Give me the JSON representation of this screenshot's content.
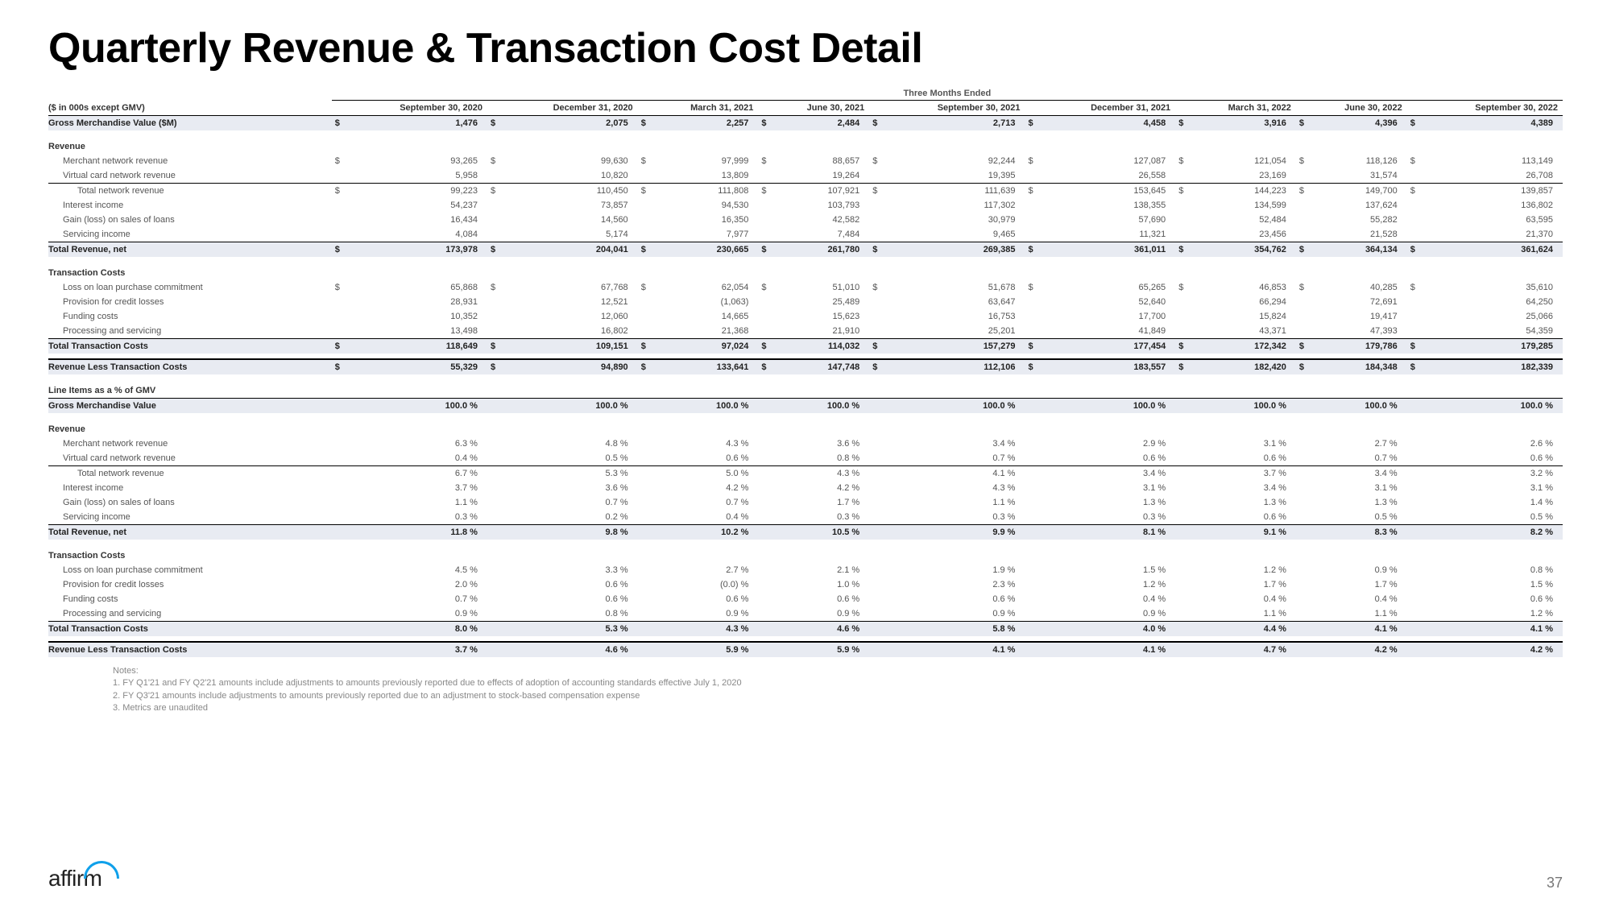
{
  "title": "Quarterly Revenue & Transaction Cost Detail",
  "period_header": "Three Months Ended",
  "units_label": "($ in 000s except GMV)",
  "columns": [
    "September 30, 2020",
    "December 31, 2020",
    "March 31, 2021",
    "June 30, 2021",
    "September 30, 2021",
    "December 31, 2021",
    "March 31, 2022",
    "June 30, 2022",
    "September 30, 2022"
  ],
  "page_number": "37",
  "logo_text": "affirm",
  "notes_title": "Notes:",
  "notes": [
    "1. FY Q1'21 and FY Q2'21 amounts include adjustments to amounts previously reported due to effects of adoption of accounting standards effective July 1, 2020",
    "2. FY Q3'21 amounts include adjustments to amounts previously reported due to an adjustment to stock-based compensation expense",
    "3. Metrics are unaudited"
  ],
  "rows": [
    {
      "label": "Gross Merchandise Value ($M)",
      "cls": "bold shaded top-line",
      "dollar": true,
      "vals": [
        "1,476",
        "2,075",
        "2,257",
        "2,484",
        "2,713",
        "4,458",
        "3,916",
        "4,396",
        "4,389"
      ]
    },
    {
      "label": "",
      "cls": "spacer",
      "vals": []
    },
    {
      "label": "Revenue",
      "cls": "section-head",
      "vals": []
    },
    {
      "label": "Merchant network revenue",
      "cls": "indent1",
      "dollar": true,
      "vals": [
        "93,265",
        "99,630",
        "97,999",
        "88,657",
        "92,244",
        "127,087",
        "121,054",
        "118,126",
        "113,149"
      ]
    },
    {
      "label": "Virtual card network revenue",
      "cls": "indent1 bot-line",
      "vals": [
        "5,958",
        "10,820",
        "13,809",
        "19,264",
        "19,395",
        "26,558",
        "23,169",
        "31,574",
        "26,708"
      ]
    },
    {
      "label": "Total network revenue",
      "cls": "indent2",
      "dollar": true,
      "vals": [
        "99,223",
        "110,450",
        "111,808",
        "107,921",
        "111,639",
        "153,645",
        "144,223",
        "149,700",
        "139,857"
      ]
    },
    {
      "label": "Interest income",
      "cls": "indent1",
      "vals": [
        "54,237",
        "73,857",
        "94,530",
        "103,793",
        "117,302",
        "138,355",
        "134,599",
        "137,624",
        "136,802"
      ]
    },
    {
      "label": "Gain (loss) on sales of loans",
      "cls": "indent1",
      "vals": [
        "16,434",
        "14,560",
        "16,350",
        "42,582",
        "30,979",
        "57,690",
        "52,484",
        "55,282",
        "63,595"
      ]
    },
    {
      "label": "Servicing income",
      "cls": "indent1 bot-line",
      "vals": [
        "4,084",
        "5,174",
        "7,977",
        "7,484",
        "9,465",
        "11,321",
        "23,456",
        "21,528",
        "21,370"
      ]
    },
    {
      "label": "Total Revenue, net",
      "cls": "bold shaded",
      "dollar": true,
      "vals": [
        "173,978",
        "204,041",
        "230,665",
        "261,780",
        "269,385",
        "361,011",
        "354,762",
        "364,134",
        "361,624"
      ]
    },
    {
      "label": "",
      "cls": "spacer",
      "vals": []
    },
    {
      "label": "Transaction Costs",
      "cls": "section-head",
      "vals": []
    },
    {
      "label": "Loss on loan purchase commitment",
      "cls": "indent1",
      "dollar": true,
      "vals": [
        "65,868",
        "67,768",
        "62,054",
        "51,010",
        "51,678",
        "65,265",
        "46,853",
        "40,285",
        "35,610"
      ]
    },
    {
      "label": "Provision for credit losses",
      "cls": "indent1",
      "vals": [
        "28,931",
        "12,521",
        "(1,063)",
        "25,489",
        "63,647",
        "52,640",
        "66,294",
        "72,691",
        "64,250"
      ]
    },
    {
      "label": "Funding costs",
      "cls": "indent1",
      "vals": [
        "10,352",
        "12,060",
        "14,665",
        "15,623",
        "16,753",
        "17,700",
        "15,824",
        "19,417",
        "25,066"
      ]
    },
    {
      "label": "Processing and servicing",
      "cls": "indent1 bot-line",
      "vals": [
        "13,498",
        "16,802",
        "21,368",
        "21,910",
        "25,201",
        "41,849",
        "43,371",
        "47,393",
        "54,359"
      ]
    },
    {
      "label": "Total Transaction Costs",
      "cls": "bold shaded",
      "dollar": true,
      "vals": [
        "118,649",
        "109,151",
        "97,024",
        "114,032",
        "157,279",
        "177,454",
        "172,342",
        "179,786",
        "179,285"
      ]
    },
    {
      "label": "",
      "cls": "spacer",
      "vals": []
    },
    {
      "label": "Revenue Less Transaction Costs",
      "cls": "bold shaded dbl-top",
      "dollar": true,
      "vals": [
        "55,329",
        "94,890",
        "133,641",
        "147,748",
        "112,106",
        "183,557",
        "182,420",
        "184,348",
        "182,339"
      ]
    },
    {
      "label": "",
      "cls": "spacer",
      "vals": []
    },
    {
      "label": "Line Items as a % of GMV",
      "cls": "section-head bot-line",
      "vals": []
    },
    {
      "label": "Gross Merchandise Value",
      "cls": "bold shaded",
      "pct": true,
      "vals": [
        "100.0",
        "100.0",
        "100.0",
        "100.0",
        "100.0",
        "100.0",
        "100.0",
        "100.0",
        "100.0"
      ]
    },
    {
      "label": "",
      "cls": "spacer",
      "vals": []
    },
    {
      "label": "Revenue",
      "cls": "section-head",
      "vals": []
    },
    {
      "label": "Merchant network revenue",
      "cls": "indent1",
      "pct": true,
      "vals": [
        "6.3",
        "4.8",
        "4.3",
        "3.6",
        "3.4",
        "2.9",
        "3.1",
        "2.7",
        "2.6"
      ]
    },
    {
      "label": "Virtual card network revenue",
      "cls": "indent1 bot-line",
      "pct": true,
      "vals": [
        "0.4",
        "0.5",
        "0.6",
        "0.8",
        "0.7",
        "0.6",
        "0.6",
        "0.7",
        "0.6"
      ]
    },
    {
      "label": "Total network revenue",
      "cls": "indent2",
      "pct": true,
      "vals": [
        "6.7",
        "5.3",
        "5.0",
        "4.3",
        "4.1",
        "3.4",
        "3.7",
        "3.4",
        "3.2"
      ]
    },
    {
      "label": "Interest income",
      "cls": "indent1",
      "pct": true,
      "vals": [
        "3.7",
        "3.6",
        "4.2",
        "4.2",
        "4.3",
        "3.1",
        "3.4",
        "3.1",
        "3.1"
      ]
    },
    {
      "label": "Gain (loss) on sales of loans",
      "cls": "indent1",
      "pct": true,
      "vals": [
        "1.1",
        "0.7",
        "0.7",
        "1.7",
        "1.1",
        "1.3",
        "1.3",
        "1.3",
        "1.4"
      ]
    },
    {
      "label": "Servicing income",
      "cls": "indent1 bot-line",
      "pct": true,
      "vals": [
        "0.3",
        "0.2",
        "0.4",
        "0.3",
        "0.3",
        "0.3",
        "0.6",
        "0.5",
        "0.5"
      ]
    },
    {
      "label": "Total Revenue, net",
      "cls": "bold shaded",
      "pct": true,
      "vals": [
        "11.8",
        "9.8",
        "10.2",
        "10.5",
        "9.9",
        "8.1",
        "9.1",
        "8.3",
        "8.2"
      ]
    },
    {
      "label": "",
      "cls": "spacer",
      "vals": []
    },
    {
      "label": "Transaction Costs",
      "cls": "section-head",
      "vals": []
    },
    {
      "label": "Loss on loan purchase commitment",
      "cls": "indent1",
      "pct": true,
      "vals": [
        "4.5",
        "3.3",
        "2.7",
        "2.1",
        "1.9",
        "1.5",
        "1.2",
        "0.9",
        "0.8"
      ]
    },
    {
      "label": "Provision for credit losses",
      "cls": "indent1",
      "pct": true,
      "vals": [
        "2.0",
        "0.6",
        "(0.0)",
        "1.0",
        "2.3",
        "1.2",
        "1.7",
        "1.7",
        "1.5"
      ]
    },
    {
      "label": "Funding costs",
      "cls": "indent1",
      "pct": true,
      "vals": [
        "0.7",
        "0.6",
        "0.6",
        "0.6",
        "0.6",
        "0.4",
        "0.4",
        "0.4",
        "0.6"
      ]
    },
    {
      "label": "Processing and servicing",
      "cls": "indent1 bot-line",
      "pct": true,
      "vals": [
        "0.9",
        "0.8",
        "0.9",
        "0.9",
        "0.9",
        "0.9",
        "1.1",
        "1.1",
        "1.2"
      ]
    },
    {
      "label": "Total Transaction Costs",
      "cls": "bold shaded",
      "pct": true,
      "vals": [
        "8.0",
        "5.3",
        "4.3",
        "4.6",
        "5.8",
        "4.0",
        "4.4",
        "4.1",
        "4.1"
      ]
    },
    {
      "label": "",
      "cls": "spacer",
      "vals": []
    },
    {
      "label": "Revenue Less Transaction Costs",
      "cls": "bold shaded dbl-top",
      "pct": true,
      "vals": [
        "3.7",
        "4.6",
        "5.9",
        "5.9",
        "4.1",
        "4.1",
        "4.7",
        "4.2",
        "4.2"
      ]
    }
  ]
}
